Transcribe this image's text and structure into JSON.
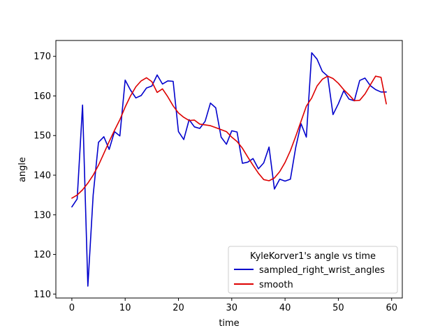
{
  "chart_data": {
    "type": "line",
    "title": "",
    "xlabel": "time",
    "ylabel": "angle",
    "xlim": [
      -3,
      62
    ],
    "ylim": [
      109,
      174
    ],
    "xticks": [
      0,
      10,
      20,
      30,
      40,
      50,
      60
    ],
    "yticks": [
      110,
      120,
      130,
      140,
      150,
      160,
      170
    ],
    "grid": false,
    "legend": {
      "title": "KyleKorver1's angle vs time",
      "placement": "bottom-right"
    },
    "x": [
      0,
      1,
      2,
      3,
      4,
      5,
      6,
      7,
      8,
      9,
      10,
      11,
      12,
      13,
      14,
      15,
      16,
      17,
      18,
      19,
      20,
      21,
      22,
      23,
      24,
      25,
      26,
      27,
      28,
      29,
      30,
      31,
      32,
      33,
      34,
      35,
      36,
      37,
      38,
      39,
      40,
      41,
      42,
      43,
      44,
      45,
      46,
      47,
      48,
      49,
      50,
      51,
      52,
      53,
      54,
      55,
      56,
      57,
      58,
      59
    ],
    "series": [
      {
        "name": "sampled_right_wrist_angles",
        "color": "#0000cc",
        "values": [
          132.0,
          134.0,
          157.7,
          112.0,
          135.0,
          148.3,
          149.7,
          146.5,
          151.0,
          149.9,
          164.0,
          161.5,
          159.5,
          160.1,
          162.0,
          162.5,
          165.3,
          163.0,
          163.8,
          163.7,
          151.0,
          149.0,
          154.0,
          152.2,
          151.8,
          153.6,
          158.2,
          157.0,
          149.6,
          147.8,
          151.2,
          150.9,
          143.0,
          143.3,
          144.2,
          141.6,
          143.1,
          147.1,
          136.5,
          139.0,
          138.5,
          139.0,
          147.0,
          153.0,
          149.6,
          170.9,
          169.3,
          166.2,
          165.0,
          155.3,
          158.0,
          161.3,
          159.2,
          158.8,
          163.9,
          164.5,
          162.6,
          161.6,
          161.0,
          161.0
        ]
      },
      {
        "name": "smooth",
        "color": "#dd0000",
        "values": [
          134.2,
          135.0,
          136.3,
          138.0,
          140.0,
          142.5,
          145.5,
          148.5,
          151.3,
          154.0,
          157.2,
          160.0,
          162.3,
          163.8,
          164.6,
          163.6,
          160.9,
          161.8,
          159.8,
          157.5,
          155.7,
          154.6,
          153.8,
          153.9,
          152.9,
          152.7,
          152.5,
          152.0,
          151.5,
          151.0,
          149.6,
          148.5,
          146.8,
          144.6,
          142.5,
          140.5,
          138.9,
          138.6,
          139.3,
          140.9,
          143.2,
          146.2,
          149.8,
          153.6,
          157.4,
          159.5,
          162.5,
          164.2,
          165.0,
          164.4,
          163.2,
          161.6,
          160.3,
          158.8,
          158.9,
          160.5,
          162.8,
          165.0,
          164.7,
          158.0
        ]
      }
    ]
  }
}
